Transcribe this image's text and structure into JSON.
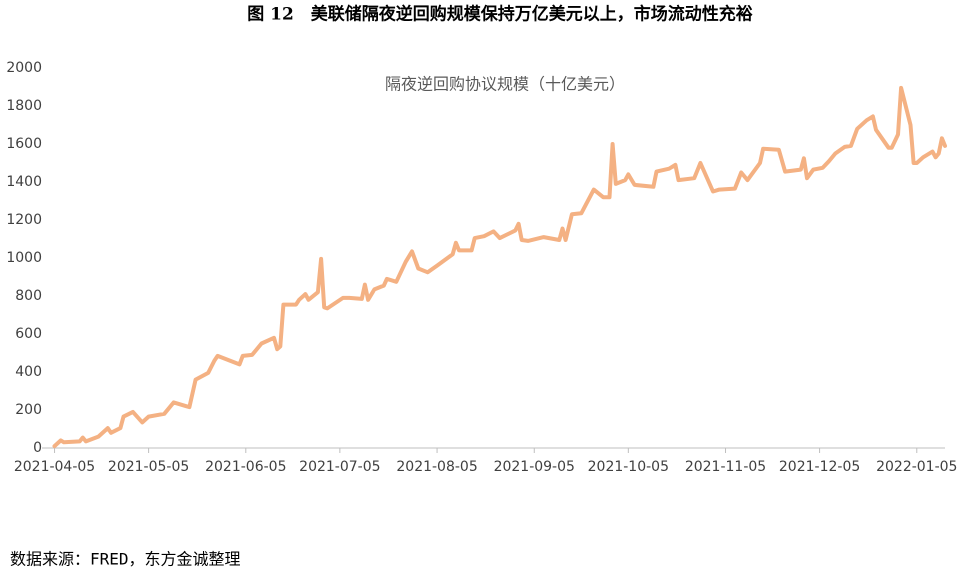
{
  "title": "图 12　美联储隔夜逆回购规模保持万亿美元以上，市场流动性充裕",
  "source": "数据来源：FRED，东方金诚整理",
  "chart_data": {
    "type": "line",
    "title": "隔夜逆回购协议规模（十亿美元）",
    "x": [
      "2021-04-05",
      "2021-04-07",
      "2021-04-08",
      "2021-04-13",
      "2021-04-14",
      "2021-04-15",
      "2021-04-19",
      "2021-04-22",
      "2021-04-23",
      "2021-04-26",
      "2021-04-27",
      "2021-04-30",
      "2021-05-03",
      "2021-05-05",
      "2021-05-10",
      "2021-05-13",
      "2021-05-17",
      "2021-05-18",
      "2021-05-20",
      "2021-05-24",
      "2021-05-26",
      "2021-05-27",
      "2021-06-03",
      "2021-06-04",
      "2021-06-07",
      "2021-06-10",
      "2021-06-14",
      "2021-06-15",
      "2021-06-16",
      "2021-06-17",
      "2021-06-21",
      "2021-06-22",
      "2021-06-24",
      "2021-06-25",
      "2021-06-28",
      "2021-06-29",
      "2021-06-30",
      "2021-07-01",
      "2021-07-06",
      "2021-07-08",
      "2021-07-12",
      "2021-07-13",
      "2021-07-14",
      "2021-07-16",
      "2021-07-19",
      "2021-07-20",
      "2021-07-23",
      "2021-07-26",
      "2021-07-28",
      "2021-07-30",
      "2021-08-02",
      "2021-08-05",
      "2021-08-10",
      "2021-08-11",
      "2021-08-12",
      "2021-08-16",
      "2021-08-17",
      "2021-08-20",
      "2021-08-23",
      "2021-08-25",
      "2021-08-30",
      "2021-08-31",
      "2021-09-01",
      "2021-09-03",
      "2021-09-08",
      "2021-09-13",
      "2021-09-14",
      "2021-09-15",
      "2021-09-17",
      "2021-09-20",
      "2021-09-24",
      "2021-09-27",
      "2021-09-29",
      "2021-09-30",
      "2021-10-01",
      "2021-10-04",
      "2021-10-05",
      "2021-10-07",
      "2021-10-13",
      "2021-10-14",
      "2021-10-18",
      "2021-10-19",
      "2021-10-20",
      "2021-10-21",
      "2021-10-26",
      "2021-10-28",
      "2021-11-01",
      "2021-11-03",
      "2021-11-08",
      "2021-11-10",
      "2021-11-12",
      "2021-11-16",
      "2021-11-17",
      "2021-11-22",
      "2021-11-24",
      "2021-11-29",
      "2021-11-30",
      "2021-12-01",
      "2021-12-03",
      "2021-12-06",
      "2021-12-08",
      "2021-12-10",
      "2021-12-13",
      "2021-12-15",
      "2021-12-17",
      "2021-12-20",
      "2021-12-22",
      "2021-12-23",
      "2021-12-27",
      "2021-12-28",
      "2021-12-30",
      "2021-12-31",
      "2022-01-03",
      "2022-01-04",
      "2022-01-05",
      "2022-01-07",
      "2022-01-10",
      "2022-01-11",
      "2022-01-12",
      "2022-01-13",
      "2022-01-14"
    ],
    "series": [
      {
        "name": "隔夜逆回购协议规模",
        "color": "#f4b183",
        "values": [
          10,
          40,
          30,
          35,
          55,
          35,
          60,
          105,
          80,
          105,
          165,
          190,
          135,
          165,
          180,
          240,
          220,
          215,
          360,
          395,
          460,
          485,
          440,
          485,
          490,
          550,
          580,
          520,
          535,
          755,
          755,
          780,
          810,
          780,
          820,
          995,
          740,
          735,
          790,
          790,
          785,
          860,
          780,
          835,
          855,
          890,
          875,
          980,
          1035,
          945,
          925,
          960,
          1020,
          1080,
          1040,
          1040,
          1105,
          1115,
          1140,
          1105,
          1145,
          1180,
          1095,
          1090,
          1110,
          1095,
          1155,
          1095,
          1230,
          1235,
          1360,
          1320,
          1320,
          1600,
          1390,
          1410,
          1440,
          1385,
          1375,
          1455,
          1470,
          1480,
          1490,
          1410,
          1420,
          1500,
          1350,
          1360,
          1365,
          1450,
          1410,
          1500,
          1575,
          1570,
          1455,
          1465,
          1525,
          1420,
          1465,
          1475,
          1510,
          1550,
          1585,
          1590,
          1680,
          1725,
          1745,
          1675,
          1580,
          1580,
          1650,
          1895,
          1700,
          1500,
          1500,
          1530,
          1560,
          1530,
          1550,
          1630,
          1590
        ]
      }
    ],
    "xlim": [
      "2021-04-01",
      "2022-01-14"
    ],
    "xticks": [
      "2021-04-05",
      "2021-05-05",
      "2021-06-05",
      "2021-07-05",
      "2021-08-05",
      "2021-09-05",
      "2021-10-05",
      "2021-11-05",
      "2021-12-05",
      "2022-01-05"
    ],
    "ylim": [
      0,
      2000
    ],
    "yticks": [
      0,
      200,
      400,
      600,
      800,
      1000,
      1200,
      1400,
      1600,
      1800,
      2000
    ],
    "grid": false
  }
}
